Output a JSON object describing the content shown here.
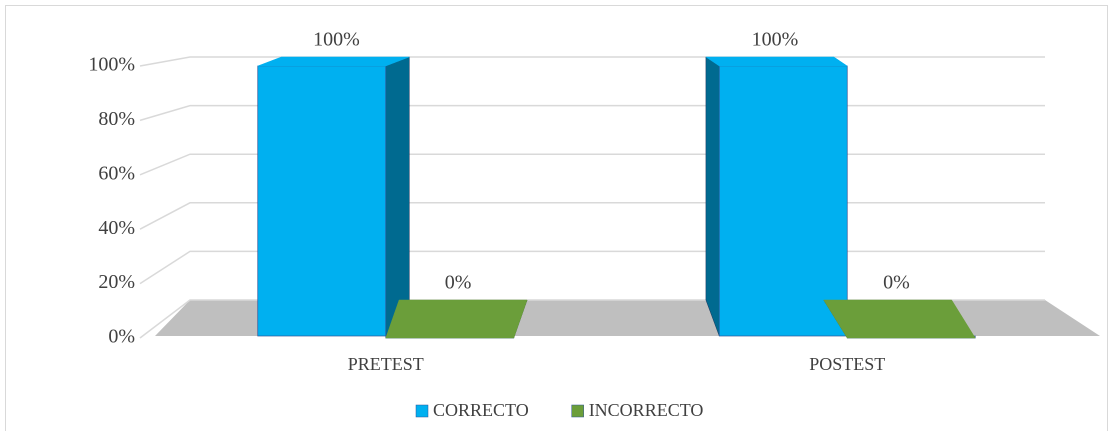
{
  "chart_data": {
    "type": "bar3d",
    "categories": [
      "PRETEST",
      "POSTEST"
    ],
    "series": [
      {
        "name": "CORRECTO",
        "color": "#00b0f0",
        "values": [
          100,
          100
        ],
        "value_labels": [
          "100%",
          "100%"
        ]
      },
      {
        "name": "INCORRECTO",
        "color": "#6b9e3a",
        "values": [
          0,
          0
        ],
        "value_labels": [
          "0%",
          "0%"
        ]
      }
    ],
    "ylim": [
      0,
      100
    ],
    "yticks": [
      {
        "value": 0,
        "label": "0%"
      },
      {
        "value": 20,
        "label": "20%"
      },
      {
        "value": 40,
        "label": "40%"
      },
      {
        "value": 60,
        "label": "60%"
      },
      {
        "value": 80,
        "label": "80%"
      },
      {
        "value": 100,
        "label": "100%"
      }
    ],
    "grid": true,
    "legend": "bottom"
  }
}
